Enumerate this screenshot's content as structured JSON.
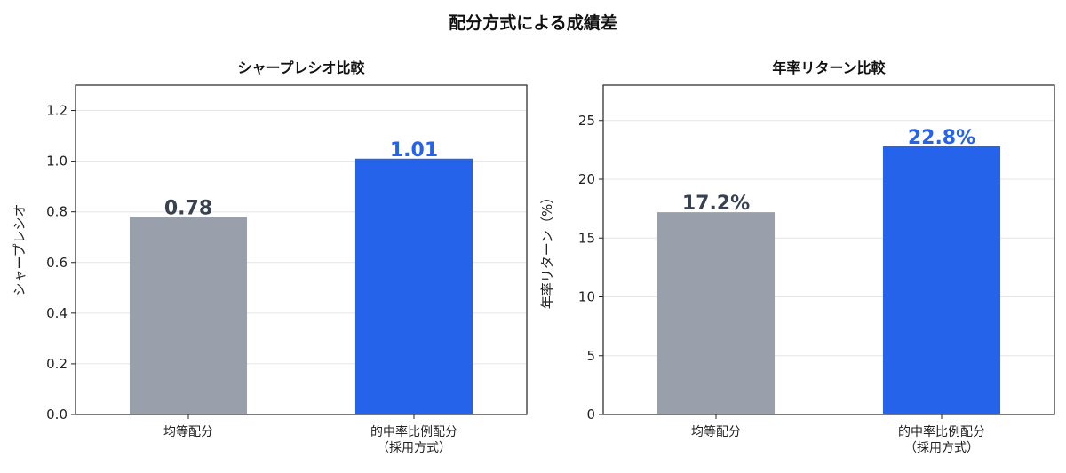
{
  "figure": {
    "title": "配分方式による成績差"
  },
  "chart_data": [
    {
      "type": "bar",
      "title": "シャープレシオ比較",
      "xlabel": "",
      "ylabel": "シャープレシオ",
      "ylim": [
        0,
        1.3
      ],
      "yticks": [
        0.0,
        0.2,
        0.4,
        0.6,
        0.8,
        1.0,
        1.2
      ],
      "ytick_labels": [
        "0.0",
        "0.2",
        "0.4",
        "0.6",
        "0.8",
        "1.0",
        "1.2"
      ],
      "categories": [
        [
          "均等配分"
        ],
        [
          "的中率比例配分",
          "（採用方式）"
        ]
      ],
      "values": [
        0.78,
        1.01
      ],
      "value_labels": [
        "0.78",
        "1.01"
      ],
      "colors": [
        "#9aa0ab",
        "#2563eb"
      ],
      "label_colors": [
        "#374151",
        "#2563eb"
      ],
      "grid": true
    },
    {
      "type": "bar",
      "title": "年率リターン比較",
      "xlabel": "",
      "ylabel": "年率リターン（%）",
      "ylim": [
        0,
        28
      ],
      "yticks": [
        0,
        5,
        10,
        15,
        20,
        25
      ],
      "ytick_labels": [
        "0",
        "5",
        "10",
        "15",
        "20",
        "25"
      ],
      "categories": [
        [
          "均等配分"
        ],
        [
          "的中率比例配分",
          "（採用方式）"
        ]
      ],
      "values": [
        17.2,
        22.8
      ],
      "value_labels": [
        "17.2%",
        "22.8%"
      ],
      "colors": [
        "#9aa0ab",
        "#2563eb"
      ],
      "label_colors": [
        "#374151",
        "#2563eb"
      ],
      "grid": true
    }
  ]
}
